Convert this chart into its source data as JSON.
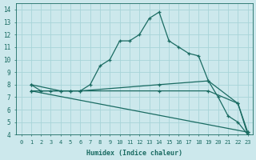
{
  "xlabel": "Humidex (Indice chaleur)",
  "xlim": [
    -0.5,
    23.5
  ],
  "ylim": [
    4,
    14.5
  ],
  "yticks": [
    4,
    5,
    6,
    7,
    8,
    9,
    10,
    11,
    12,
    13,
    14
  ],
  "xticks": [
    0,
    1,
    2,
    3,
    4,
    5,
    6,
    7,
    8,
    9,
    10,
    11,
    12,
    13,
    14,
    15,
    16,
    17,
    18,
    19,
    20,
    21,
    22,
    23
  ],
  "bg_color": "#cce8ec",
  "grid_color": "#a8d4d8",
  "line_color": "#1a6b62",
  "line1_x": [
    1,
    2,
    3,
    4,
    5,
    6,
    7,
    8,
    9,
    10,
    11,
    12,
    13,
    14,
    15,
    16,
    17,
    18,
    19,
    20,
    21,
    22,
    23
  ],
  "line1_y": [
    8.0,
    7.5,
    7.5,
    7.5,
    7.5,
    7.5,
    8.0,
    9.5,
    10.0,
    11.5,
    11.5,
    12.0,
    13.3,
    13.8,
    11.5,
    11.0,
    10.5,
    10.3,
    8.3,
    7.0,
    5.5,
    5.0,
    4.0
  ],
  "line2_x": [
    1,
    4,
    5,
    6,
    14,
    19,
    22,
    23
  ],
  "line2_y": [
    8.0,
    7.5,
    7.5,
    7.5,
    8.0,
    8.3,
    6.5,
    4.0
  ],
  "line3_x": [
    1,
    14,
    19,
    22,
    23
  ],
  "line3_y": [
    7.5,
    7.5,
    7.5,
    6.5,
    4.2
  ],
  "line4_x": [
    1,
    23
  ],
  "line4_y": [
    7.5,
    4.2
  ]
}
